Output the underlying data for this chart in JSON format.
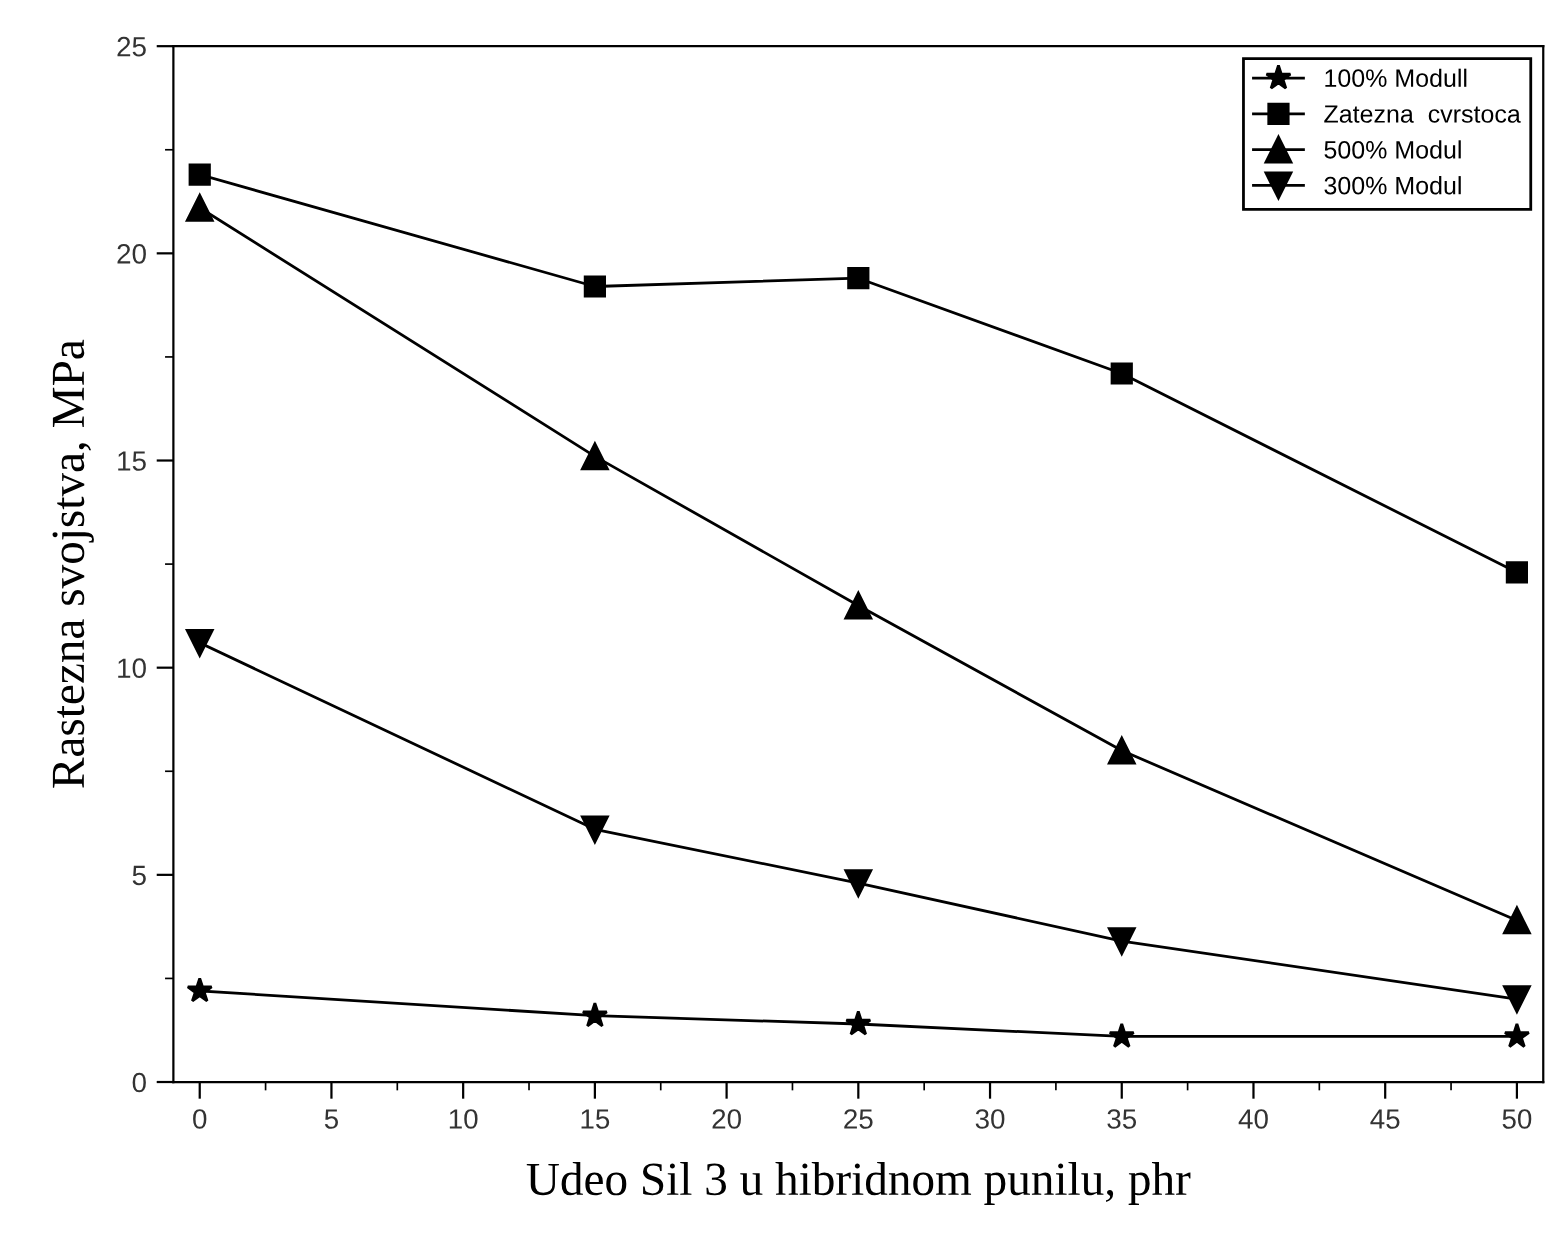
{
  "chart_data": {
    "type": "line",
    "xlabel": "Udeo Sil 3 u hibridnom punilu, phr",
    "ylabel": "Rastezna svojstva, MPa",
    "x": [
      0,
      15,
      25,
      35,
      50
    ],
    "series": [
      {
        "name": "100% Modull",
        "color": "#000000",
        "marker": "star",
        "values": [
          2.2,
          1.6,
          1.4,
          1.1,
          1.1
        ]
      },
      {
        "name": "Zatezna  cvrstoca",
        "color": "#000000",
        "marker": "square",
        "values": [
          21.9,
          19.2,
          19.4,
          17.1,
          12.3
        ]
      },
      {
        "name": "500% Modul",
        "color": "#000000",
        "marker": "triangle",
        "values": [
          21.1,
          15.1,
          11.5,
          8.0,
          3.9
        ]
      },
      {
        "name": "300% Modul",
        "color": "#000000",
        "marker": "triangle_down",
        "values": [
          10.6,
          6.1,
          4.8,
          3.4,
          2.0
        ]
      }
    ],
    "xlim": [
      -1,
      51
    ],
    "xticks": [
      0,
      5,
      10,
      15,
      20,
      25,
      30,
      35,
      40,
      45,
      50
    ],
    "ylim": [
      0,
      25
    ],
    "yticks": [
      0,
      5,
      10,
      15,
      20,
      25
    ],
    "grid": false,
    "legend": "top right",
    "line_style": "solid"
  }
}
